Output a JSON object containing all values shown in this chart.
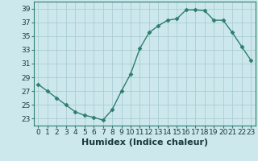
{
  "x": [
    0,
    1,
    2,
    3,
    4,
    5,
    6,
    7,
    8,
    9,
    10,
    11,
    12,
    13,
    14,
    15,
    16,
    17,
    18,
    19,
    20,
    21,
    22,
    23
  ],
  "y": [
    28,
    27,
    26,
    25,
    24,
    23.5,
    23.2,
    22.8,
    24.3,
    27,
    29.5,
    33.2,
    35.5,
    36.5,
    37.3,
    37.5,
    38.8,
    38.8,
    38.7,
    37.3,
    37.3,
    35.5,
    33.5,
    31.5
  ],
  "line_color": "#2e7d6e",
  "marker": "D",
  "marker_size": 2.5,
  "bg_color": "#cce8ec",
  "grid_color": "#aacdd4",
  "xlabel": "Humidex (Indice chaleur)",
  "xlabel_fontsize": 8,
  "xlim": [
    -0.5,
    23.5
  ],
  "ylim": [
    22,
    40
  ],
  "yticks": [
    23,
    25,
    27,
    29,
    31,
    33,
    35,
    37,
    39
  ],
  "xticks": [
    0,
    1,
    2,
    3,
    4,
    5,
    6,
    7,
    8,
    9,
    10,
    11,
    12,
    13,
    14,
    15,
    16,
    17,
    18,
    19,
    20,
    21,
    22,
    23
  ],
  "tick_fontsize": 6.5,
  "line_width": 1.0
}
